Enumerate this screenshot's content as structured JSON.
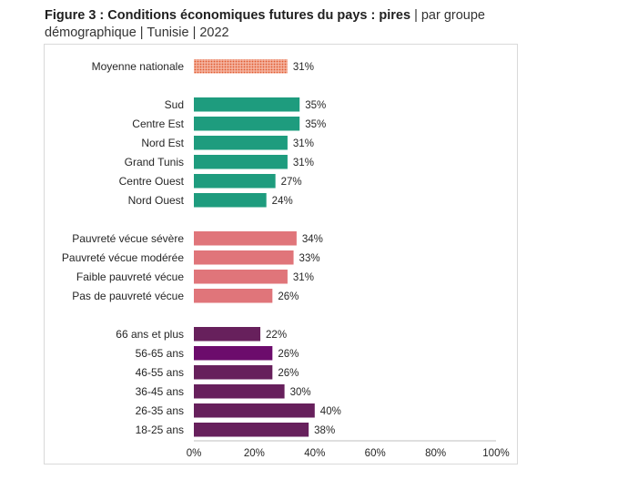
{
  "title": {
    "bold": "Figure 3 : Conditions économiques futures du pays : pires",
    "rest": "| par groupe",
    "line2": "démographique | Tunisie | 2022"
  },
  "colors": {
    "national": "#e8603c",
    "region": "#1e9c7e",
    "poverty": "#e0757a",
    "age": "#67205c",
    "age_highlight": "#6c0c6c",
    "axis": "#bfbfbf"
  },
  "chart_data": {
    "type": "bar",
    "orientation": "horizontal",
    "xlim": [
      0,
      100
    ],
    "xticks": [
      "0%",
      "20%",
      "40%",
      "60%",
      "80%",
      "100%"
    ],
    "groups": [
      {
        "name": "national",
        "items": [
          {
            "label": "Moyenne nationale",
            "value": 31,
            "label_text": "31%"
          }
        ]
      },
      {
        "name": "region",
        "items": [
          {
            "label": "Sud",
            "value": 35,
            "label_text": "35%"
          },
          {
            "label": "Centre Est",
            "value": 35,
            "label_text": "35%"
          },
          {
            "label": "Nord Est",
            "value": 31,
            "label_text": "31%"
          },
          {
            "label": "Grand Tunis",
            "value": 31,
            "label_text": "31%"
          },
          {
            "label": "Centre Ouest",
            "value": 27,
            "label_text": "27%"
          },
          {
            "label": "Nord Ouest",
            "value": 24,
            "label_text": "24%"
          }
        ]
      },
      {
        "name": "poverty",
        "items": [
          {
            "label": "Pauvreté vécue sévère",
            "value": 34,
            "label_text": "34%"
          },
          {
            "label": "Pauvreté vécue modérée",
            "value": 33,
            "label_text": "33%"
          },
          {
            "label": "Faible pauvreté vécue",
            "value": 31,
            "label_text": "31%"
          },
          {
            "label": "Pas de pauvreté vécue",
            "value": 26,
            "label_text": "26%"
          }
        ]
      },
      {
        "name": "age",
        "items": [
          {
            "label": "66 ans et plus",
            "value": 22,
            "label_text": "22%"
          },
          {
            "label": "56-65 ans",
            "value": 26,
            "label_text": "26%"
          },
          {
            "label": "46-55 ans",
            "value": 26,
            "label_text": "26%"
          },
          {
            "label": "36-45 ans",
            "value": 30,
            "label_text": "30%"
          },
          {
            "label": "26-35 ans",
            "value": 40,
            "label_text": "40%"
          },
          {
            "label": "18-25 ans",
            "value": 38,
            "label_text": "38%"
          }
        ]
      }
    ]
  }
}
